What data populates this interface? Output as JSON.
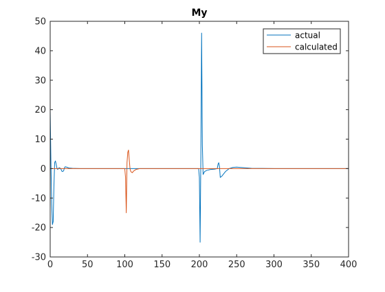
{
  "chart_data": {
    "type": "line",
    "title": "My",
    "xlabel": "",
    "ylabel": "",
    "xlim": [
      0,
      400
    ],
    "ylim": [
      -30,
      50
    ],
    "x_ticks": [
      0,
      50,
      100,
      150,
      200,
      250,
      300,
      350,
      400
    ],
    "y_ticks": [
      -30,
      -20,
      -10,
      0,
      10,
      20,
      30,
      40,
      50
    ],
    "grid": false,
    "legend_position": "top-right",
    "series": [
      {
        "name": "actual",
        "color": "#0072BD",
        "x": [
          0,
          1,
          2,
          3,
          4,
          5,
          6,
          7,
          8,
          9,
          10,
          11,
          12,
          13,
          14,
          16,
          18,
          19,
          20,
          22,
          25,
          30,
          40,
          60,
          100,
          150,
          199,
          200,
          201,
          202,
          203,
          204,
          205,
          207,
          210,
          215,
          220,
          224,
          225,
          226,
          227,
          228,
          230,
          235,
          240,
          245,
          250,
          260,
          270,
          300,
          350,
          400
        ],
        "y": [
          20,
          2,
          -12,
          -19,
          -18,
          -6,
          2,
          2.6,
          1.5,
          0.2,
          -0.3,
          0,
          0.3,
          0.2,
          0,
          -1,
          -0.8,
          0.2,
          0.6,
          0.5,
          0.2,
          0.1,
          0,
          0,
          0,
          0,
          0,
          -3,
          -25,
          5,
          46,
          8,
          -2,
          -1,
          -0.6,
          -0.3,
          -0.2,
          0,
          1.5,
          2,
          0.5,
          -3,
          -2.6,
          -1,
          0,
          0.4,
          0.5,
          0.3,
          0.1,
          0,
          0,
          0
        ]
      },
      {
        "name": "calculated",
        "color": "#D95319",
        "x": [
          0,
          99,
          100,
          101,
          102,
          103,
          104,
          105,
          106,
          107,
          108,
          110,
          112,
          115,
          120,
          125,
          200,
          400
        ],
        "y": [
          0,
          0,
          0,
          -3,
          -15,
          2,
          5.5,
          6.3,
          3,
          0,
          -1,
          -1.4,
          -0.8,
          -0.3,
          0,
          0,
          0,
          0
        ]
      }
    ]
  }
}
